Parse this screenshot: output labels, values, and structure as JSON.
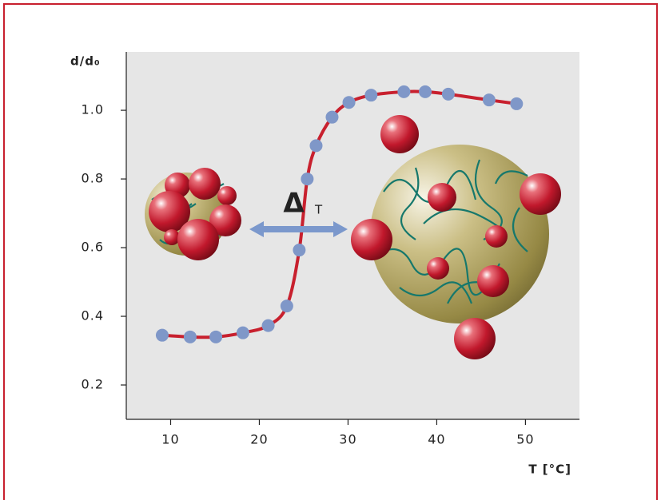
{
  "chart_data": {
    "type": "line",
    "xlabel": "T [°C]",
    "ylabel": "d/d₀",
    "annotations": [
      "Δ",
      "T"
    ],
    "x": [
      9.05,
      12.2,
      15.1,
      18.15,
      21.0,
      23.1,
      24.5,
      25.4,
      26.4,
      28.2,
      30.1,
      32.6,
      36.3,
      38.7,
      41.3,
      45.9,
      49.0
    ],
    "series": [
      {
        "color": "#c8202e",
        "marker_color": "#7f97c8",
        "values": [
          0.345,
          0.34,
          0.34,
          0.352,
          0.373,
          0.43,
          0.593,
          0.8,
          0.897,
          0.98,
          1.023,
          1.044,
          1.054,
          1.054,
          1.047,
          1.03,
          1.019
        ]
      }
    ],
    "xlim": [
      5,
      56
    ],
    "ylim": [
      0.1,
      1.17
    ],
    "xticks": [
      10,
      20,
      30,
      40,
      50
    ],
    "yticks": [
      0.2,
      0.4,
      0.6,
      0.8,
      {
        "value": 1,
        "label": "1.0"
      }
    ]
  }
}
